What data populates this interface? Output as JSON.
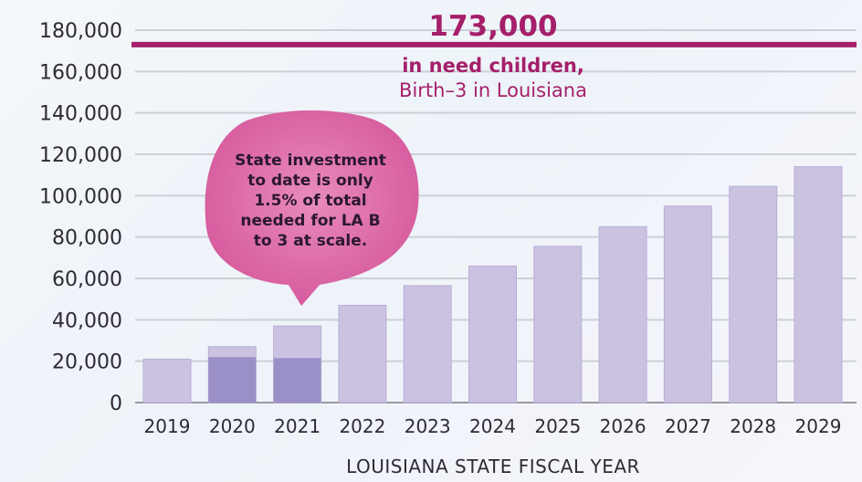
{
  "chart_data": {
    "type": "bar",
    "xlabel": "LOUISIANA STATE FISCAL YEAR",
    "ylabel": "",
    "ylim": [
      0,
      180000
    ],
    "yticks": [
      "0",
      "20,000",
      "40,000",
      "60,000",
      "80,000",
      "100,000",
      "120,000",
      "140,000",
      "160,000",
      "180,000"
    ],
    "ytick_values": [
      0,
      20000,
      40000,
      60000,
      80000,
      100000,
      120000,
      140000,
      160000,
      180000
    ],
    "categories": [
      "2019",
      "2020",
      "2021",
      "2022",
      "2023",
      "2024",
      "2025",
      "2026",
      "2027",
      "2028",
      "2029"
    ],
    "values": [
      21000,
      27000,
      37000,
      47000,
      56500,
      66000,
      75500,
      85000,
      95000,
      104500,
      114000
    ],
    "funded_portion": [
      0,
      22000,
      21500,
      0,
      0,
      0,
      0,
      0,
      0,
      0,
      0
    ],
    "grid": true,
    "target": {
      "value": 173000,
      "value_label": "173,000",
      "line1": "in need children,",
      "line2": "Birth–3 in Louisiana"
    },
    "callout": {
      "lines": [
        "State investment",
        "to date is only",
        "1.5% of total",
        "needed for LA B",
        "to 3 at scale."
      ]
    },
    "colors": {
      "bar": "#cbc2e2",
      "bar_funded": "#9b8fc7",
      "target_line": "#a51f6a",
      "bubble": "#d95a9f",
      "grid": "#cdd0d6"
    }
  }
}
